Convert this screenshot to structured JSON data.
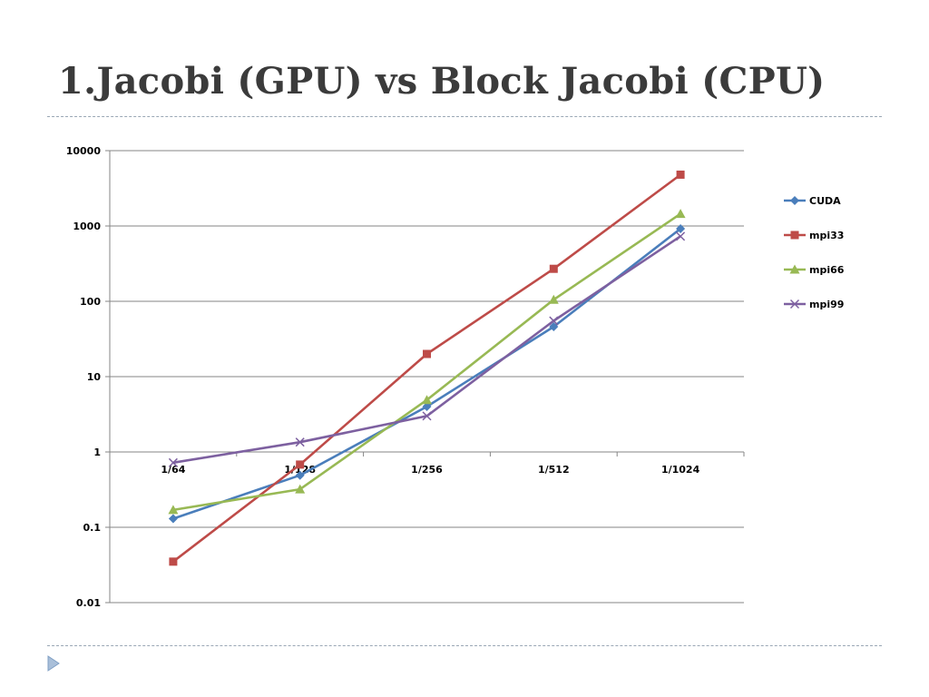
{
  "slide": {
    "title": "1.Jacobi (GPU) vs Block Jacobi (CPU)",
    "accent_color": "#9aa7b5",
    "bullet_icon": "triangle-right-icon"
  },
  "chart_data": {
    "type": "line",
    "title": "",
    "xlabel": "",
    "ylabel": "",
    "y_scale": "log",
    "ylim": [
      0.01,
      10000
    ],
    "y_ticks": [
      "10000",
      "1000",
      "100",
      "10",
      "1",
      "0.1",
      "0.01"
    ],
    "y_tick_values": [
      10000,
      1000,
      100,
      10,
      1,
      0.1,
      0.01
    ],
    "x_axis_crosses_at": 1,
    "grid": "horizontal",
    "legend_position": "right",
    "categories": [
      "1/64",
      "1/128",
      "1/256",
      "1/512",
      "1/1024"
    ],
    "series": [
      {
        "name": "CUDA",
        "color": "#4a7ebb",
        "marker": "diamond",
        "values": [
          0.13,
          0.49,
          4.0,
          46,
          920
        ]
      },
      {
        "name": "mpi33",
        "color": "#be4b48",
        "marker": "square",
        "values": [
          0.035,
          0.68,
          20,
          270,
          4800
        ]
      },
      {
        "name": "mpi66",
        "color": "#98b954",
        "marker": "triangle",
        "values": [
          0.17,
          0.32,
          4.9,
          105,
          1450
        ]
      },
      {
        "name": "mpi99",
        "color": "#7d60a0",
        "marker": "x",
        "values": [
          0.72,
          1.35,
          3.0,
          55,
          730
        ]
      }
    ]
  }
}
